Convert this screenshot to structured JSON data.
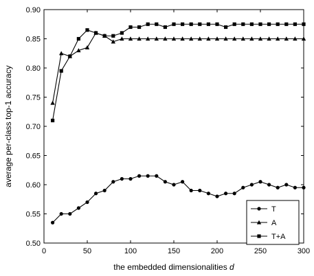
{
  "chart_data": {
    "type": "line",
    "title": "",
    "xlabel": "the embedded dimensionalities",
    "xlabel_var": "d",
    "ylabel": "average per-class top-1 accuracy",
    "xlim": [
      0,
      300
    ],
    "ylim": [
      0.5,
      0.9
    ],
    "xticks": [
      0,
      50,
      100,
      150,
      200,
      250,
      300
    ],
    "yticks": [
      0.5,
      0.55,
      0.6,
      0.65,
      0.7,
      0.75,
      0.8,
      0.85,
      0.9
    ],
    "grid": false,
    "legend_position": "bottom-right",
    "x": [
      10,
      20,
      30,
      40,
      50,
      60,
      70,
      80,
      90,
      100,
      110,
      120,
      130,
      140,
      150,
      160,
      170,
      180,
      190,
      200,
      210,
      220,
      230,
      240,
      250,
      260,
      270,
      280,
      290,
      300
    ],
    "series": [
      {
        "name": "T",
        "marker": "circle",
        "values": [
          0.535,
          0.55,
          0.55,
          0.56,
          0.57,
          0.585,
          0.59,
          0.605,
          0.61,
          0.61,
          0.615,
          0.615,
          0.615,
          0.605,
          0.6,
          0.605,
          0.59,
          0.59,
          0.585,
          0.58,
          0.585,
          0.585,
          0.595,
          0.6,
          0.605,
          0.6,
          0.595,
          0.6,
          0.595,
          0.595
        ]
      },
      {
        "name": "A",
        "marker": "triangle",
        "values": [
          0.74,
          0.825,
          0.82,
          0.83,
          0.835,
          0.86,
          0.855,
          0.845,
          0.85,
          0.85,
          0.85,
          0.85,
          0.85,
          0.85,
          0.85,
          0.85,
          0.85,
          0.85,
          0.85,
          0.85,
          0.85,
          0.85,
          0.85,
          0.85,
          0.85,
          0.85,
          0.85,
          0.85,
          0.85,
          0.85
        ]
      },
      {
        "name": "T+A",
        "marker": "square",
        "values": [
          0.71,
          0.795,
          0.82,
          0.85,
          0.865,
          0.86,
          0.855,
          0.855,
          0.86,
          0.87,
          0.87,
          0.875,
          0.875,
          0.87,
          0.875,
          0.875,
          0.875,
          0.875,
          0.875,
          0.875,
          0.87,
          0.875,
          0.875,
          0.875,
          0.875,
          0.875,
          0.875,
          0.875,
          0.875,
          0.875
        ]
      }
    ]
  }
}
